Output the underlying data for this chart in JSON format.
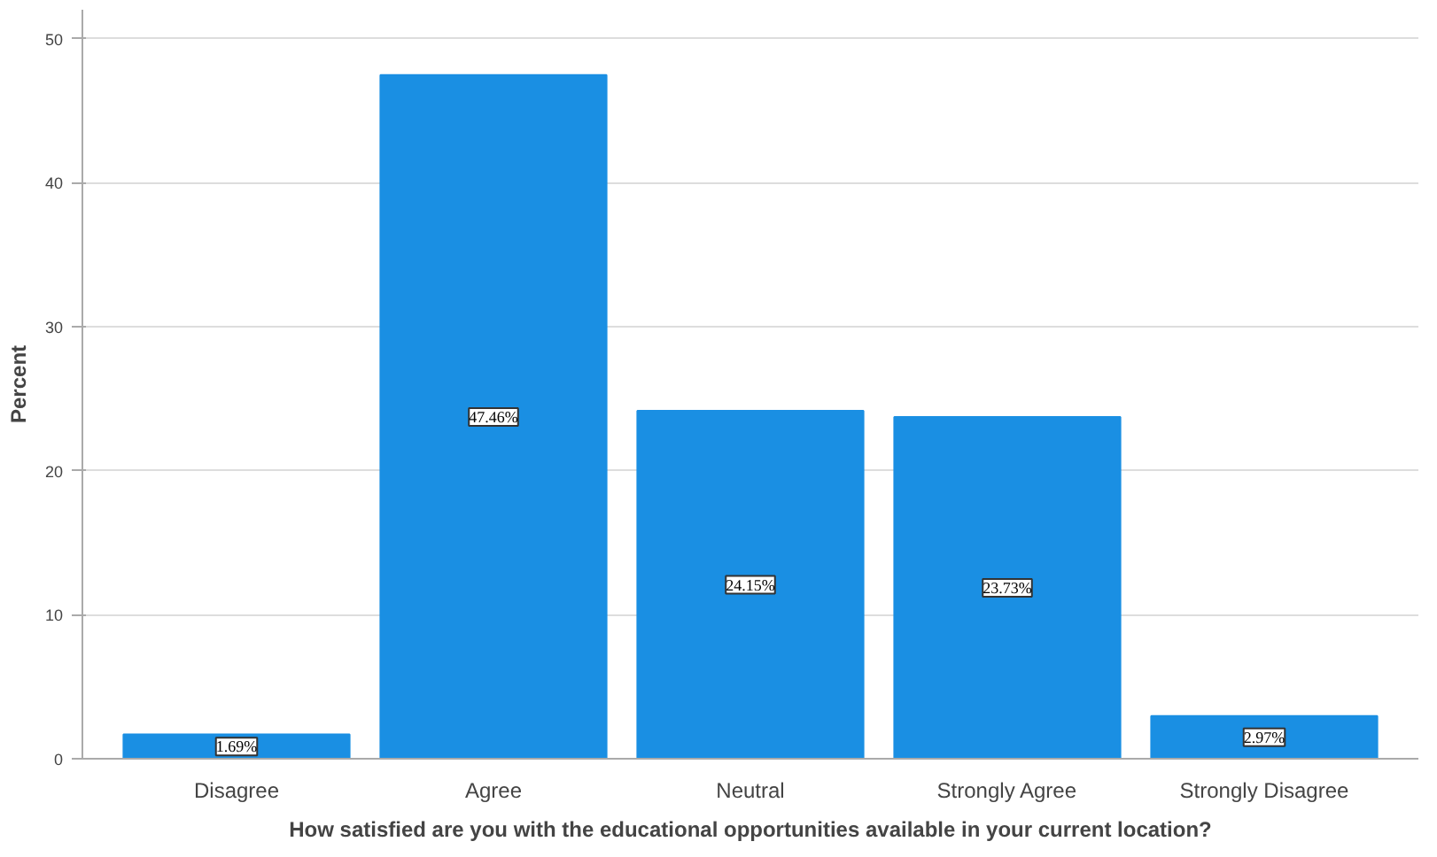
{
  "chart_data": {
    "type": "bar",
    "xlabel": "How satisfied are you with the educational opportunities available in your current location?",
    "ylabel": "Percent",
    "categories": [
      "Disagree",
      "Agree",
      "Neutral",
      "Strongly Agree",
      "Strongly Disagree"
    ],
    "values": [
      1.69,
      47.46,
      24.15,
      23.73,
      2.97
    ],
    "value_labels": [
      "1.69%",
      "47.46%",
      "24.15%",
      "23.73%",
      "2.97%"
    ],
    "color": "#1a8fe3",
    "ylim": [
      0,
      52
    ],
    "yticks": [
      0,
      10,
      20,
      30,
      40,
      50
    ],
    "grid": "y"
  }
}
